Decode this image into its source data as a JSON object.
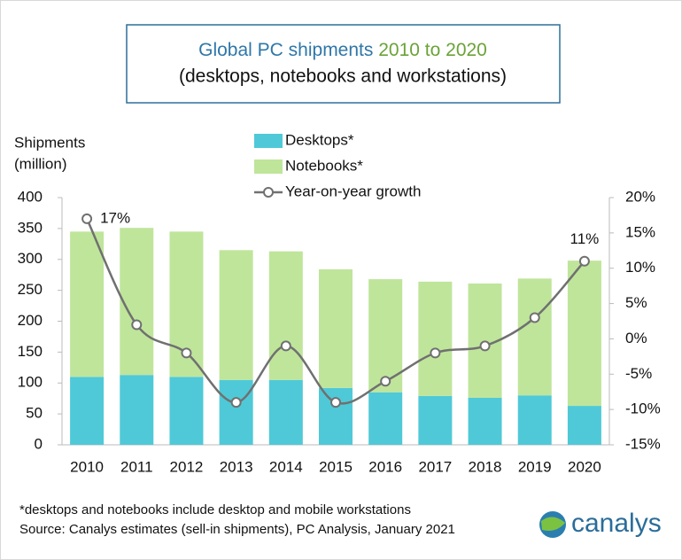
{
  "chart_data": {
    "type": "stacked-bar-line",
    "title_parts": [
      "Global PC shipments",
      "2010 to 2020"
    ],
    "subtitle": "(desktops, notebooks and workstations)",
    "ylabel": [
      "Shipments",
      "(million)"
    ],
    "categories": [
      "2010",
      "2011",
      "2012",
      "2013",
      "2014",
      "2015",
      "2016",
      "2017",
      "2018",
      "2019",
      "2020"
    ],
    "series": [
      {
        "name": "Desktops*",
        "color": "#4fc9d7",
        "values": [
          110,
          113,
          110,
          105,
          105,
          92,
          85,
          79,
          76,
          80,
          63
        ]
      },
      {
        "name": "Notebooks*",
        "color": "#bfe59b",
        "values": [
          235,
          238,
          235,
          210,
          208,
          192,
          183,
          185,
          185,
          189,
          235
        ]
      },
      {
        "name": "Year-on-year growth",
        "color": "#707070",
        "axis": "y2",
        "values": [
          17,
          2,
          -2,
          -9,
          -1,
          -9,
          -6,
          -2,
          -1,
          3,
          11
        ],
        "value_labels": [
          "17%",
          null,
          null,
          null,
          null,
          null,
          null,
          null,
          null,
          null,
          "11%"
        ]
      }
    ],
    "ylim": [
      0,
      400
    ],
    "yticks": [
      0,
      50,
      100,
      150,
      200,
      250,
      300,
      350,
      400
    ],
    "y2lim": [
      -15,
      20
    ],
    "y2ticks": [
      {
        "value": -15,
        "label": "-15%"
      },
      {
        "value": -10,
        "label": "-10%"
      },
      {
        "value": -5,
        "label": "-5%"
      },
      {
        "value": 0,
        "label": "0%"
      },
      {
        "value": 5,
        "label": "5%"
      },
      {
        "value": 10,
        "label": "10%"
      },
      {
        "value": 15,
        "label": "15%"
      },
      {
        "value": 20,
        "label": "20%"
      }
    ],
    "footnote": "*desktops and notebooks include desktop and mobile workstations",
    "source": "Source: Canalys estimates (sell-in shipments), PC Analysis, January 2021",
    "logo": "canalys"
  }
}
